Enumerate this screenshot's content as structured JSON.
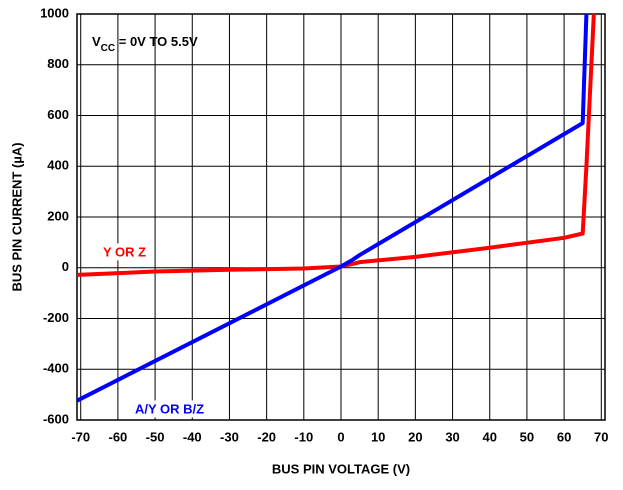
{
  "chart_data": {
    "type": "line",
    "xlabel": "BUS PIN VOLTAGE (V)",
    "ylabel": "BUS PIN CURRENT (µA)",
    "annotation": {
      "main": "V",
      "sub": "CC",
      "rest": " = 0V TO 5.5V"
    },
    "xlim": [
      -71,
      71
    ],
    "xticks": [
      -70,
      -60,
      -50,
      -40,
      -30,
      -20,
      -10,
      0,
      10,
      20,
      30,
      40,
      50,
      60,
      70
    ],
    "ylim": [
      -600,
      1000
    ],
    "yticks": [
      -600,
      -400,
      -200,
      0,
      200,
      400,
      600,
      800,
      1000
    ],
    "grid": true,
    "series": [
      {
        "name": "Y OR Z",
        "color": "#ff0000",
        "x": [
          -71,
          -50,
          -30,
          -10,
          0,
          4,
          5,
          20,
          40,
          60,
          65,
          66,
          68
        ],
        "values": [
          -28,
          -15,
          -8,
          -3,
          5,
          18,
          22,
          43,
          79,
          118,
          135,
          400,
          1000
        ]
      },
      {
        "name": "A/Y OR B/Z",
        "color": "#0000ff",
        "x": [
          -71,
          0,
          3,
          5,
          65,
          66
        ],
        "values": [
          -524,
          5,
          30,
          50,
          570,
          1000
        ]
      }
    ]
  }
}
